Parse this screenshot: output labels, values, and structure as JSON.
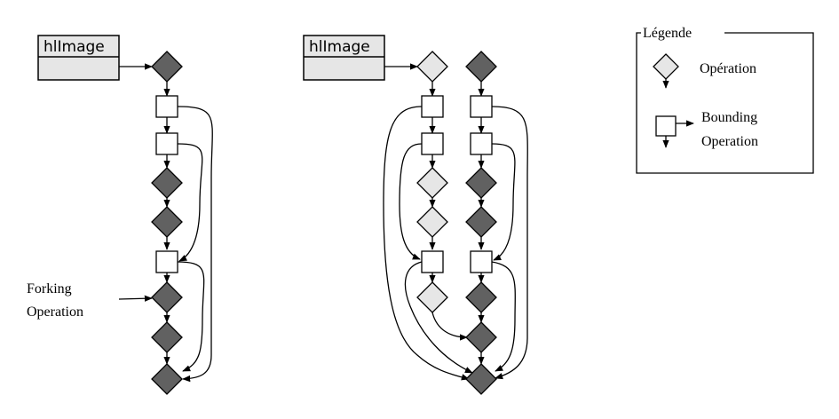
{
  "diagram": {
    "left": {
      "image_label": "hlImage",
      "annotation_line1": "Forking",
      "annotation_line2": "Operation"
    },
    "right": {
      "image_label": "hlImage"
    }
  },
  "legend": {
    "title": "Légende",
    "operation_label": "Opération",
    "bounding_label_line1": "Bounding",
    "bounding_label_line2": "Operation"
  },
  "colors": {
    "dark_operation": "#616161",
    "light_operation": "#e6e6e6",
    "image_box": "#e6e6e6",
    "stroke": "#000000"
  }
}
